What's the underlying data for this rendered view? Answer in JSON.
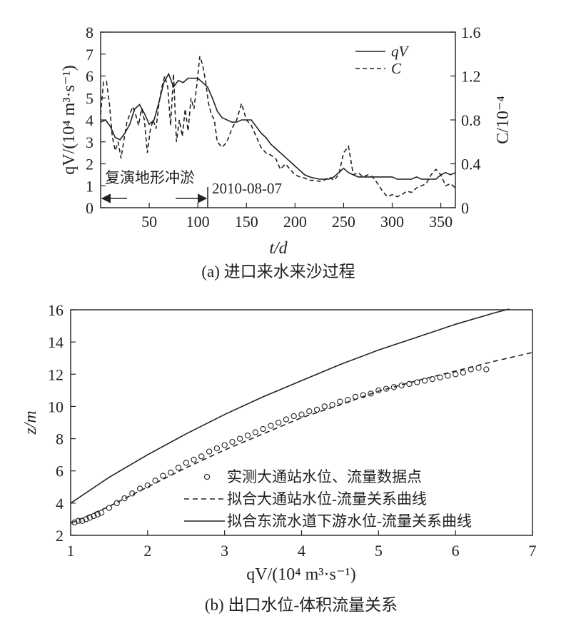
{
  "chart_data": [
    {
      "type": "line",
      "caption": "(a) 进口来水来沙过程",
      "xlabel": "t/d",
      "ylabel_left": "qV/(10⁴ m³·s⁻¹)",
      "ylabel_right": "C/10⁻⁴",
      "xlim": [
        0,
        365
      ],
      "ylim_left": [
        0,
        8
      ],
      "ylim_right": [
        0,
        1.6
      ],
      "x_ticks": [
        50,
        100,
        150,
        200,
        250,
        300,
        350
      ],
      "y_ticks_left": [
        0,
        1,
        2,
        3,
        4,
        5,
        6,
        7,
        8
      ],
      "y_ticks_right": [
        "0",
        "0.4",
        "0.8",
        "1.2",
        "1.6"
      ],
      "legend_position": "top-right",
      "annotations": {
        "left": "复演地形冲淤",
        "right": "2010-08-07",
        "arrow_end_x": 110
      },
      "series": [
        {
          "name": "qV",
          "axis": "left",
          "style": "solid",
          "x": [
            0,
            5,
            10,
            15,
            20,
            25,
            30,
            35,
            40,
            45,
            50,
            55,
            60,
            65,
            70,
            75,
            80,
            85,
            90,
            95,
            100,
            105,
            110,
            115,
            120,
            125,
            130,
            135,
            140,
            145,
            150,
            155,
            160,
            165,
            170,
            175,
            180,
            185,
            190,
            195,
            200,
            205,
            210,
            215,
            220,
            225,
            230,
            235,
            240,
            245,
            250,
            255,
            260,
            265,
            270,
            275,
            280,
            285,
            290,
            295,
            300,
            305,
            310,
            315,
            320,
            325,
            330,
            335,
            340,
            345,
            350,
            355,
            360,
            365
          ],
          "y": [
            3.9,
            4.0,
            3.7,
            3.2,
            3.1,
            3.4,
            3.8,
            4.5,
            4.7,
            4.3,
            3.8,
            4.0,
            4.8,
            5.7,
            6.1,
            5.5,
            5.8,
            5.7,
            5.9,
            5.9,
            5.9,
            5.7,
            5.5,
            5.0,
            4.4,
            4.1,
            4.0,
            3.9,
            3.9,
            4.0,
            4.0,
            4.0,
            3.7,
            3.4,
            3.2,
            2.9,
            2.7,
            2.5,
            2.3,
            2.1,
            1.9,
            1.7,
            1.5,
            1.4,
            1.35,
            1.3,
            1.3,
            1.3,
            1.4,
            1.6,
            1.8,
            1.6,
            1.5,
            1.4,
            1.4,
            1.4,
            1.4,
            1.4,
            1.4,
            1.4,
            1.4,
            1.3,
            1.3,
            1.3,
            1.3,
            1.4,
            1.3,
            1.3,
            1.3,
            1.3,
            1.5,
            1.6,
            1.5,
            1.6
          ]
        },
        {
          "name": "C",
          "axis": "right",
          "style": "dashed",
          "x": [
            0,
            3,
            6,
            9,
            12,
            15,
            18,
            21,
            24,
            27,
            30,
            33,
            36,
            39,
            42,
            45,
            48,
            51,
            54,
            57,
            60,
            63,
            66,
            69,
            72,
            75,
            78,
            81,
            84,
            87,
            90,
            93,
            96,
            99,
            102,
            105,
            108,
            111,
            114,
            117,
            120,
            125,
            130,
            135,
            140,
            145,
            150,
            155,
            160,
            165,
            170,
            175,
            180,
            185,
            190,
            195,
            200,
            205,
            210,
            215,
            220,
            225,
            230,
            235,
            240,
            245,
            250,
            255,
            260,
            265,
            270,
            275,
            280,
            285,
            290,
            295,
            300,
            305,
            310,
            315,
            320,
            325,
            330,
            335,
            340,
            345,
            350,
            355,
            360,
            365
          ],
          "y": [
            0.85,
            1.15,
            1.15,
            0.95,
            0.65,
            0.52,
            0.6,
            0.45,
            0.62,
            0.78,
            0.85,
            0.92,
            0.85,
            0.75,
            0.9,
            0.8,
            0.5,
            0.7,
            0.8,
            0.72,
            0.95,
            1.1,
            1.2,
            1.1,
            0.75,
            1.22,
            0.6,
            0.8,
            0.65,
            0.9,
            0.7,
            1.0,
            0.9,
            1.12,
            1.38,
            1.3,
            1.15,
            0.95,
            0.85,
            0.8,
            0.6,
            0.55,
            0.6,
            0.72,
            0.8,
            0.95,
            0.8,
            0.75,
            0.65,
            0.55,
            0.5,
            0.48,
            0.45,
            0.35,
            0.4,
            0.35,
            0.3,
            0.28,
            0.27,
            0.25,
            0.25,
            0.24,
            0.25,
            0.28,
            0.25,
            0.3,
            0.5,
            0.56,
            0.3,
            0.32,
            0.28,
            0.3,
            0.28,
            0.22,
            0.15,
            0.1,
            0.12,
            0.1,
            0.12,
            0.15,
            0.14,
            0.18,
            0.2,
            0.22,
            0.3,
            0.35,
            0.3,
            0.2,
            0.22,
            0.18
          ]
        }
      ]
    },
    {
      "type": "scatter",
      "caption": "(b) 出口水位-体积流量关系",
      "xlabel": "qV/(10⁴ m³·s⁻¹)",
      "ylabel": "z/m",
      "xlim": [
        1,
        7
      ],
      "ylim": [
        2,
        16
      ],
      "x_ticks": [
        1,
        2,
        3,
        4,
        5,
        6,
        7
      ],
      "y_ticks": [
        2,
        4,
        6,
        8,
        10,
        12,
        14,
        16
      ],
      "legend_position": "lower-right",
      "series": [
        {
          "name": "实测大通站水位、流量数据点",
          "style": "circles",
          "x": [
            1.05,
            1.1,
            1.15,
            1.2,
            1.25,
            1.3,
            1.35,
            1.4,
            1.5,
            1.6,
            1.7,
            1.8,
            1.9,
            2.0,
            2.1,
            2.2,
            2.3,
            2.4,
            2.5,
            2.6,
            2.7,
            2.8,
            2.9,
            3.0,
            3.1,
            3.2,
            3.3,
            3.4,
            3.5,
            3.6,
            3.7,
            3.8,
            3.9,
            4.0,
            4.1,
            4.2,
            4.3,
            4.4,
            4.5,
            4.6,
            4.7,
            4.8,
            4.9,
            5.0,
            5.1,
            5.2,
            5.3,
            5.4,
            5.5,
            5.6,
            5.7,
            5.8,
            5.9,
            6.0,
            6.1,
            6.2,
            6.3,
            6.4
          ],
          "y": [
            2.8,
            2.9,
            2.9,
            3.0,
            3.1,
            3.2,
            3.3,
            3.4,
            3.7,
            4.0,
            4.3,
            4.6,
            4.9,
            5.1,
            5.4,
            5.7,
            5.9,
            6.2,
            6.5,
            6.7,
            6.9,
            7.2,
            7.4,
            7.6,
            7.8,
            8.0,
            8.2,
            8.4,
            8.6,
            8.8,
            9.0,
            9.2,
            9.4,
            9.5,
            9.7,
            9.8,
            10.0,
            10.1,
            10.3,
            10.4,
            10.6,
            10.7,
            10.8,
            11.0,
            11.1,
            11.2,
            11.3,
            11.4,
            11.5,
            11.6,
            11.7,
            11.8,
            11.9,
            12.0,
            12.1,
            12.3,
            12.4,
            12.3
          ]
        },
        {
          "name": "拟合大通站水位-流量关系曲线",
          "style": "dashed",
          "x": [
            1.0,
            1.5,
            2.0,
            2.5,
            3.0,
            3.5,
            4.0,
            4.5,
            5.0,
            5.5,
            6.0,
            6.5,
            7.0
          ],
          "y": [
            2.75,
            3.8,
            5.0,
            6.2,
            7.3,
            8.3,
            9.3,
            10.1,
            10.95,
            11.6,
            12.2,
            12.8,
            13.35
          ]
        },
        {
          "name": "拟合东流水道下游水位-流量关系曲线",
          "style": "solid",
          "x": [
            1.0,
            1.5,
            2.0,
            2.5,
            3.0,
            3.5,
            4.0,
            4.5,
            5.0,
            5.5,
            6.0,
            6.5,
            6.7
          ],
          "y": [
            4.0,
            5.6,
            7.0,
            8.3,
            9.5,
            10.6,
            11.6,
            12.6,
            13.5,
            14.3,
            15.1,
            15.8,
            16.05
          ]
        }
      ]
    }
  ]
}
